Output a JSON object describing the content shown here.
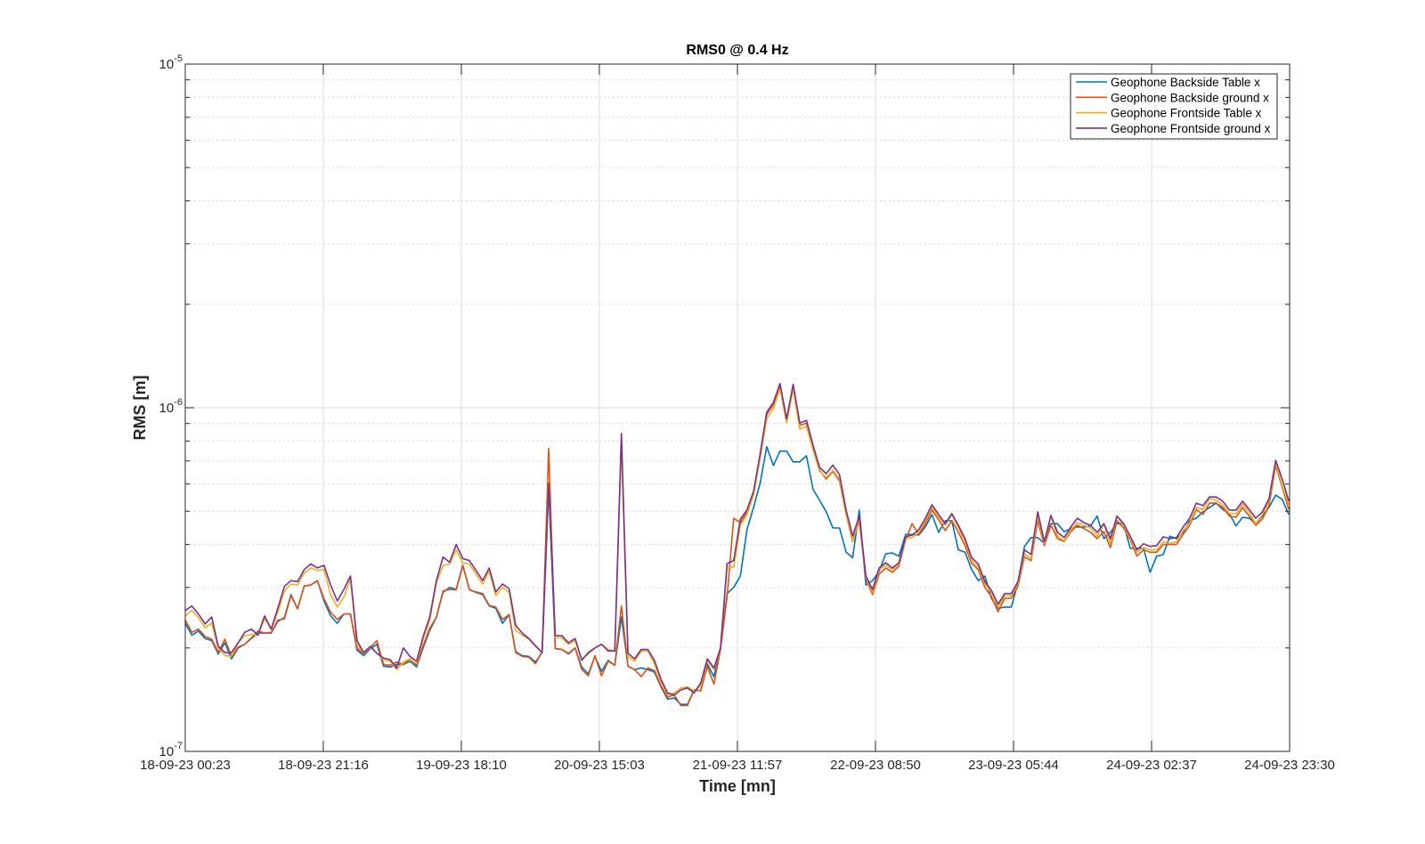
{
  "chart_data": {
    "type": "line",
    "title": "RMS0 @ 0.4 Hz",
    "xlabel": "Time [mn]",
    "ylabel": "RMS [m]",
    "y_scale": "log",
    "ylim": [
      1e-07,
      1e-05
    ],
    "y_value_unit": 1e-07,
    "y_ticks": [
      {
        "value": 1e-07,
        "base": "10",
        "exp": "-7"
      },
      {
        "value": 1e-06,
        "base": "10",
        "exp": "-6"
      },
      {
        "value": 1e-05,
        "base": "10",
        "exp": "-5"
      }
    ],
    "x_unit": "hours since 18-09-23 00:23",
    "xlim": [
      0,
      167.12
    ],
    "x_step_hours": 1,
    "x_ticks": [
      {
        "value": 0,
        "label": "18-09-23 00:23"
      },
      {
        "value": 20.89,
        "label": "18-09-23 21:16"
      },
      {
        "value": 41.78,
        "label": "19-09-23 18:10"
      },
      {
        "value": 62.67,
        "label": "20-09-23 15:03"
      },
      {
        "value": 83.56,
        "label": "21-09-23 11:57"
      },
      {
        "value": 104.45,
        "label": "22-09-23 08:50"
      },
      {
        "value": 125.34,
        "label": "23-09-23 05:44"
      },
      {
        "value": 146.23,
        "label": "24-09-23 02:37"
      },
      {
        "value": 167.12,
        "label": "24-09-23 23:30"
      }
    ],
    "grid": true,
    "legend_position": "top-right",
    "series": [
      {
        "name": "Geophone Backside Table x",
        "color": "#0072BD",
        "values": [
          2.36,
          2.18,
          2.24,
          2.13,
          2.1,
          1.92,
          2.07,
          1.86,
          2.0,
          2.05,
          2.13,
          2.21,
          2.21,
          2.21,
          2.39,
          2.45,
          2.86,
          2.6,
          3.03,
          3.05,
          3.14,
          2.74,
          2.48,
          2.36,
          2.51,
          2.51,
          1.97,
          1.9,
          1.99,
          2.05,
          1.77,
          1.76,
          1.79,
          1.79,
          1.83,
          1.76,
          2.0,
          2.25,
          2.46,
          2.9,
          3.0,
          2.96,
          3.48,
          2.96,
          2.9,
          2.86,
          2.65,
          2.61,
          2.36,
          2.5,
          1.95,
          1.9,
          1.89,
          1.82,
          1.94,
          5.87,
          1.99,
          1.98,
          1.92,
          2.0,
          1.76,
          1.68,
          1.89,
          1.71,
          1.84,
          1.78,
          2.46,
          1.77,
          1.73,
          1.75,
          1.73,
          1.7,
          1.54,
          1.42,
          1.43,
          1.37,
          1.37,
          1.51,
          1.5,
          1.8,
          1.65,
          2.0,
          2.88,
          3.0,
          3.24,
          4.42,
          5.13,
          6.04,
          7.7,
          6.79,
          7.48,
          7.48,
          6.96,
          6.96,
          7.25,
          5.79,
          5.38,
          4.98,
          4.47,
          4.47,
          3.8,
          3.66,
          5.04,
          3.05,
          3.14,
          3.34,
          3.76,
          3.78,
          3.7,
          4.28,
          4.28,
          4.26,
          4.5,
          4.89,
          4.34,
          4.69,
          4.69,
          3.86,
          3.8,
          3.38,
          3.14,
          3.24,
          2.79,
          2.61,
          2.63,
          2.63,
          3.09,
          3.95,
          4.19,
          4.19,
          4.03,
          4.6,
          4.6,
          4.36,
          4.45,
          4.5,
          4.5,
          4.53,
          4.84,
          4.16,
          4.34,
          4.6,
          4.6,
          3.9,
          3.9,
          3.9,
          3.32,
          3.7,
          3.74,
          4.23,
          4.16,
          4.34,
          4.69,
          4.77,
          4.98,
          5.13,
          5.28,
          5.06,
          4.92,
          4.53,
          4.8,
          4.77,
          4.6,
          4.84,
          5.13,
          5.57,
          5.41,
          4.89
        ]
      },
      {
        "name": "Geophone Backside ground x",
        "color": "#D95319",
        "values": [
          2.41,
          2.22,
          2.27,
          2.16,
          2.12,
          1.94,
          2.12,
          1.89,
          2.01,
          2.05,
          2.14,
          2.24,
          2.21,
          2.22,
          2.41,
          2.43,
          2.84,
          2.6,
          3.03,
          3.05,
          3.14,
          2.78,
          2.54,
          2.42,
          2.51,
          2.51,
          2.0,
          1.92,
          2.01,
          2.1,
          1.79,
          1.78,
          1.82,
          1.79,
          1.86,
          1.78,
          2.03,
          2.28,
          2.46,
          2.93,
          2.96,
          2.95,
          3.48,
          2.95,
          2.91,
          2.88,
          2.66,
          2.63,
          2.42,
          2.5,
          1.94,
          1.89,
          1.88,
          1.8,
          1.95,
          7.61,
          1.99,
          1.98,
          1.93,
          2.0,
          1.73,
          1.66,
          1.9,
          1.66,
          1.83,
          1.78,
          2.65,
          1.77,
          1.73,
          1.65,
          1.75,
          1.72,
          1.55,
          1.44,
          1.46,
          1.36,
          1.36,
          1.51,
          1.5,
          1.77,
          1.57,
          1.98,
          2.82,
          4.77,
          4.63,
          4.98,
          5.61,
          7.25,
          9.55,
          10.19,
          11.56,
          9.14,
          11.5,
          8.88,
          9.03,
          7.65,
          6.58,
          6.2,
          6.53,
          6.12,
          4.89,
          4.08,
          4.69,
          3.18,
          2.86,
          3.28,
          3.42,
          3.32,
          3.46,
          4.13,
          4.6,
          4.28,
          4.6,
          5.04,
          4.72,
          4.39,
          4.69,
          4.34,
          3.97,
          3.52,
          3.38,
          3.0,
          2.82,
          2.55,
          2.79,
          2.79,
          3.03,
          3.68,
          3.59,
          4.69,
          3.97,
          4.55,
          4.16,
          4.08,
          4.36,
          4.55,
          4.45,
          4.34,
          4.16,
          4.36,
          3.92,
          4.69,
          4.47,
          4.13,
          3.7,
          3.86,
          3.8,
          3.8,
          4.0,
          4.0,
          4.0,
          4.28,
          4.55,
          5.06,
          4.89,
          5.28,
          5.28,
          5.13,
          4.84,
          4.8,
          5.13,
          4.84,
          4.55,
          4.74,
          5.19,
          6.79,
          5.87,
          5.06
        ]
      },
      {
        "name": "Geophone Frontside Table x",
        "color": "#EDB120",
        "values": [
          2.48,
          2.57,
          2.45,
          2.29,
          2.36,
          2.0,
          1.9,
          1.89,
          2.07,
          2.17,
          2.19,
          2.18,
          2.43,
          2.27,
          2.54,
          2.93,
          3.07,
          3.05,
          3.3,
          3.42,
          3.36,
          3.38,
          2.86,
          2.63,
          2.81,
          3.18,
          2.05,
          1.93,
          2.01,
          1.93,
          1.85,
          1.83,
          1.73,
          1.82,
          1.86,
          1.8,
          2.12,
          2.41,
          3.09,
          3.48,
          3.51,
          3.86,
          3.54,
          3.51,
          3.28,
          3.07,
          3.34,
          2.84,
          3.0,
          2.91,
          2.25,
          2.18,
          2.12,
          2.02,
          1.94,
          6.2,
          2.14,
          2.14,
          2.05,
          2.1,
          1.86,
          1.92,
          2.0,
          2.05,
          1.98,
          1.96,
          7.78,
          1.89,
          1.83,
          1.96,
          1.96,
          1.8,
          1.59,
          1.46,
          1.48,
          1.53,
          1.54,
          1.5,
          1.55,
          1.84,
          1.73,
          2.0,
          3.44,
          3.44,
          4.55,
          4.89,
          5.57,
          7.13,
          9.28,
          9.94,
          11.36,
          9.03,
          11.3,
          8.67,
          8.83,
          7.52,
          6.53,
          6.27,
          6.58,
          6.2,
          4.89,
          4.1,
          4.74,
          3.22,
          2.91,
          3.38,
          3.48,
          3.38,
          3.51,
          4.16,
          4.19,
          4.34,
          4.69,
          5.13,
          4.8,
          4.55,
          4.89,
          4.47,
          4.08,
          3.59,
          3.44,
          3.07,
          2.9,
          2.63,
          2.84,
          2.84,
          3.09,
          3.76,
          3.64,
          4.84,
          4.03,
          4.84,
          4.23,
          4.1,
          4.42,
          4.63,
          4.55,
          4.47,
          4.23,
          4.6,
          4.03,
          4.84,
          4.55,
          4.16,
          3.8,
          3.92,
          3.86,
          3.86,
          4.08,
          4.03,
          4.08,
          4.39,
          4.63,
          5.13,
          5.06,
          5.44,
          5.38,
          5.22,
          4.92,
          4.92,
          5.25,
          4.96,
          4.6,
          4.89,
          5.35,
          6.91,
          5.94,
          5.22
        ]
      },
      {
        "name": "Geophone Frontside ground x",
        "color": "#7E2F8E",
        "values": [
          2.57,
          2.65,
          2.51,
          2.35,
          2.46,
          2.02,
          1.94,
          1.94,
          2.07,
          2.22,
          2.27,
          2.18,
          2.48,
          2.27,
          2.61,
          3.02,
          3.14,
          3.12,
          3.38,
          3.51,
          3.42,
          3.48,
          3.05,
          2.74,
          2.96,
          3.24,
          2.1,
          1.94,
          2.02,
          1.93,
          1.87,
          1.85,
          1.75,
          2.0,
          1.89,
          1.83,
          2.16,
          2.46,
          3.14,
          3.68,
          3.55,
          4.0,
          3.64,
          3.59,
          3.36,
          3.14,
          3.42,
          2.91,
          3.07,
          2.98,
          2.33,
          2.21,
          2.13,
          2.03,
          1.94,
          6.04,
          2.17,
          2.17,
          2.07,
          2.13,
          1.84,
          1.94,
          2.0,
          2.05,
          1.96,
          1.96,
          8.42,
          1.93,
          1.86,
          1.98,
          1.98,
          1.84,
          1.62,
          1.48,
          1.46,
          1.51,
          1.53,
          1.48,
          1.58,
          1.86,
          1.75,
          2.0,
          3.52,
          3.59,
          4.74,
          5.04,
          5.71,
          7.34,
          9.71,
          10.37,
          11.76,
          9.28,
          11.7,
          9.03,
          9.19,
          7.78,
          6.7,
          6.43,
          6.81,
          6.39,
          5.04,
          4.23,
          4.84,
          3.24,
          2.96,
          3.42,
          3.54,
          3.42,
          3.54,
          4.21,
          4.26,
          4.42,
          4.77,
          5.22,
          4.89,
          4.6,
          4.92,
          4.55,
          4.16,
          3.66,
          3.51,
          3.12,
          2.94,
          2.68,
          2.88,
          2.88,
          3.12,
          3.86,
          3.74,
          4.98,
          4.08,
          4.86,
          4.34,
          4.19,
          4.5,
          4.77,
          4.63,
          4.55,
          4.34,
          4.6,
          4.16,
          4.84,
          4.6,
          4.23,
          3.86,
          4.02,
          3.95,
          3.97,
          4.21,
          4.16,
          4.19,
          4.5,
          4.77,
          5.28,
          5.19,
          5.5,
          5.5,
          5.35,
          5.04,
          5.04,
          5.35,
          5.06,
          4.77,
          4.98,
          5.44,
          7.03,
          6.2,
          5.35
        ]
      }
    ]
  }
}
